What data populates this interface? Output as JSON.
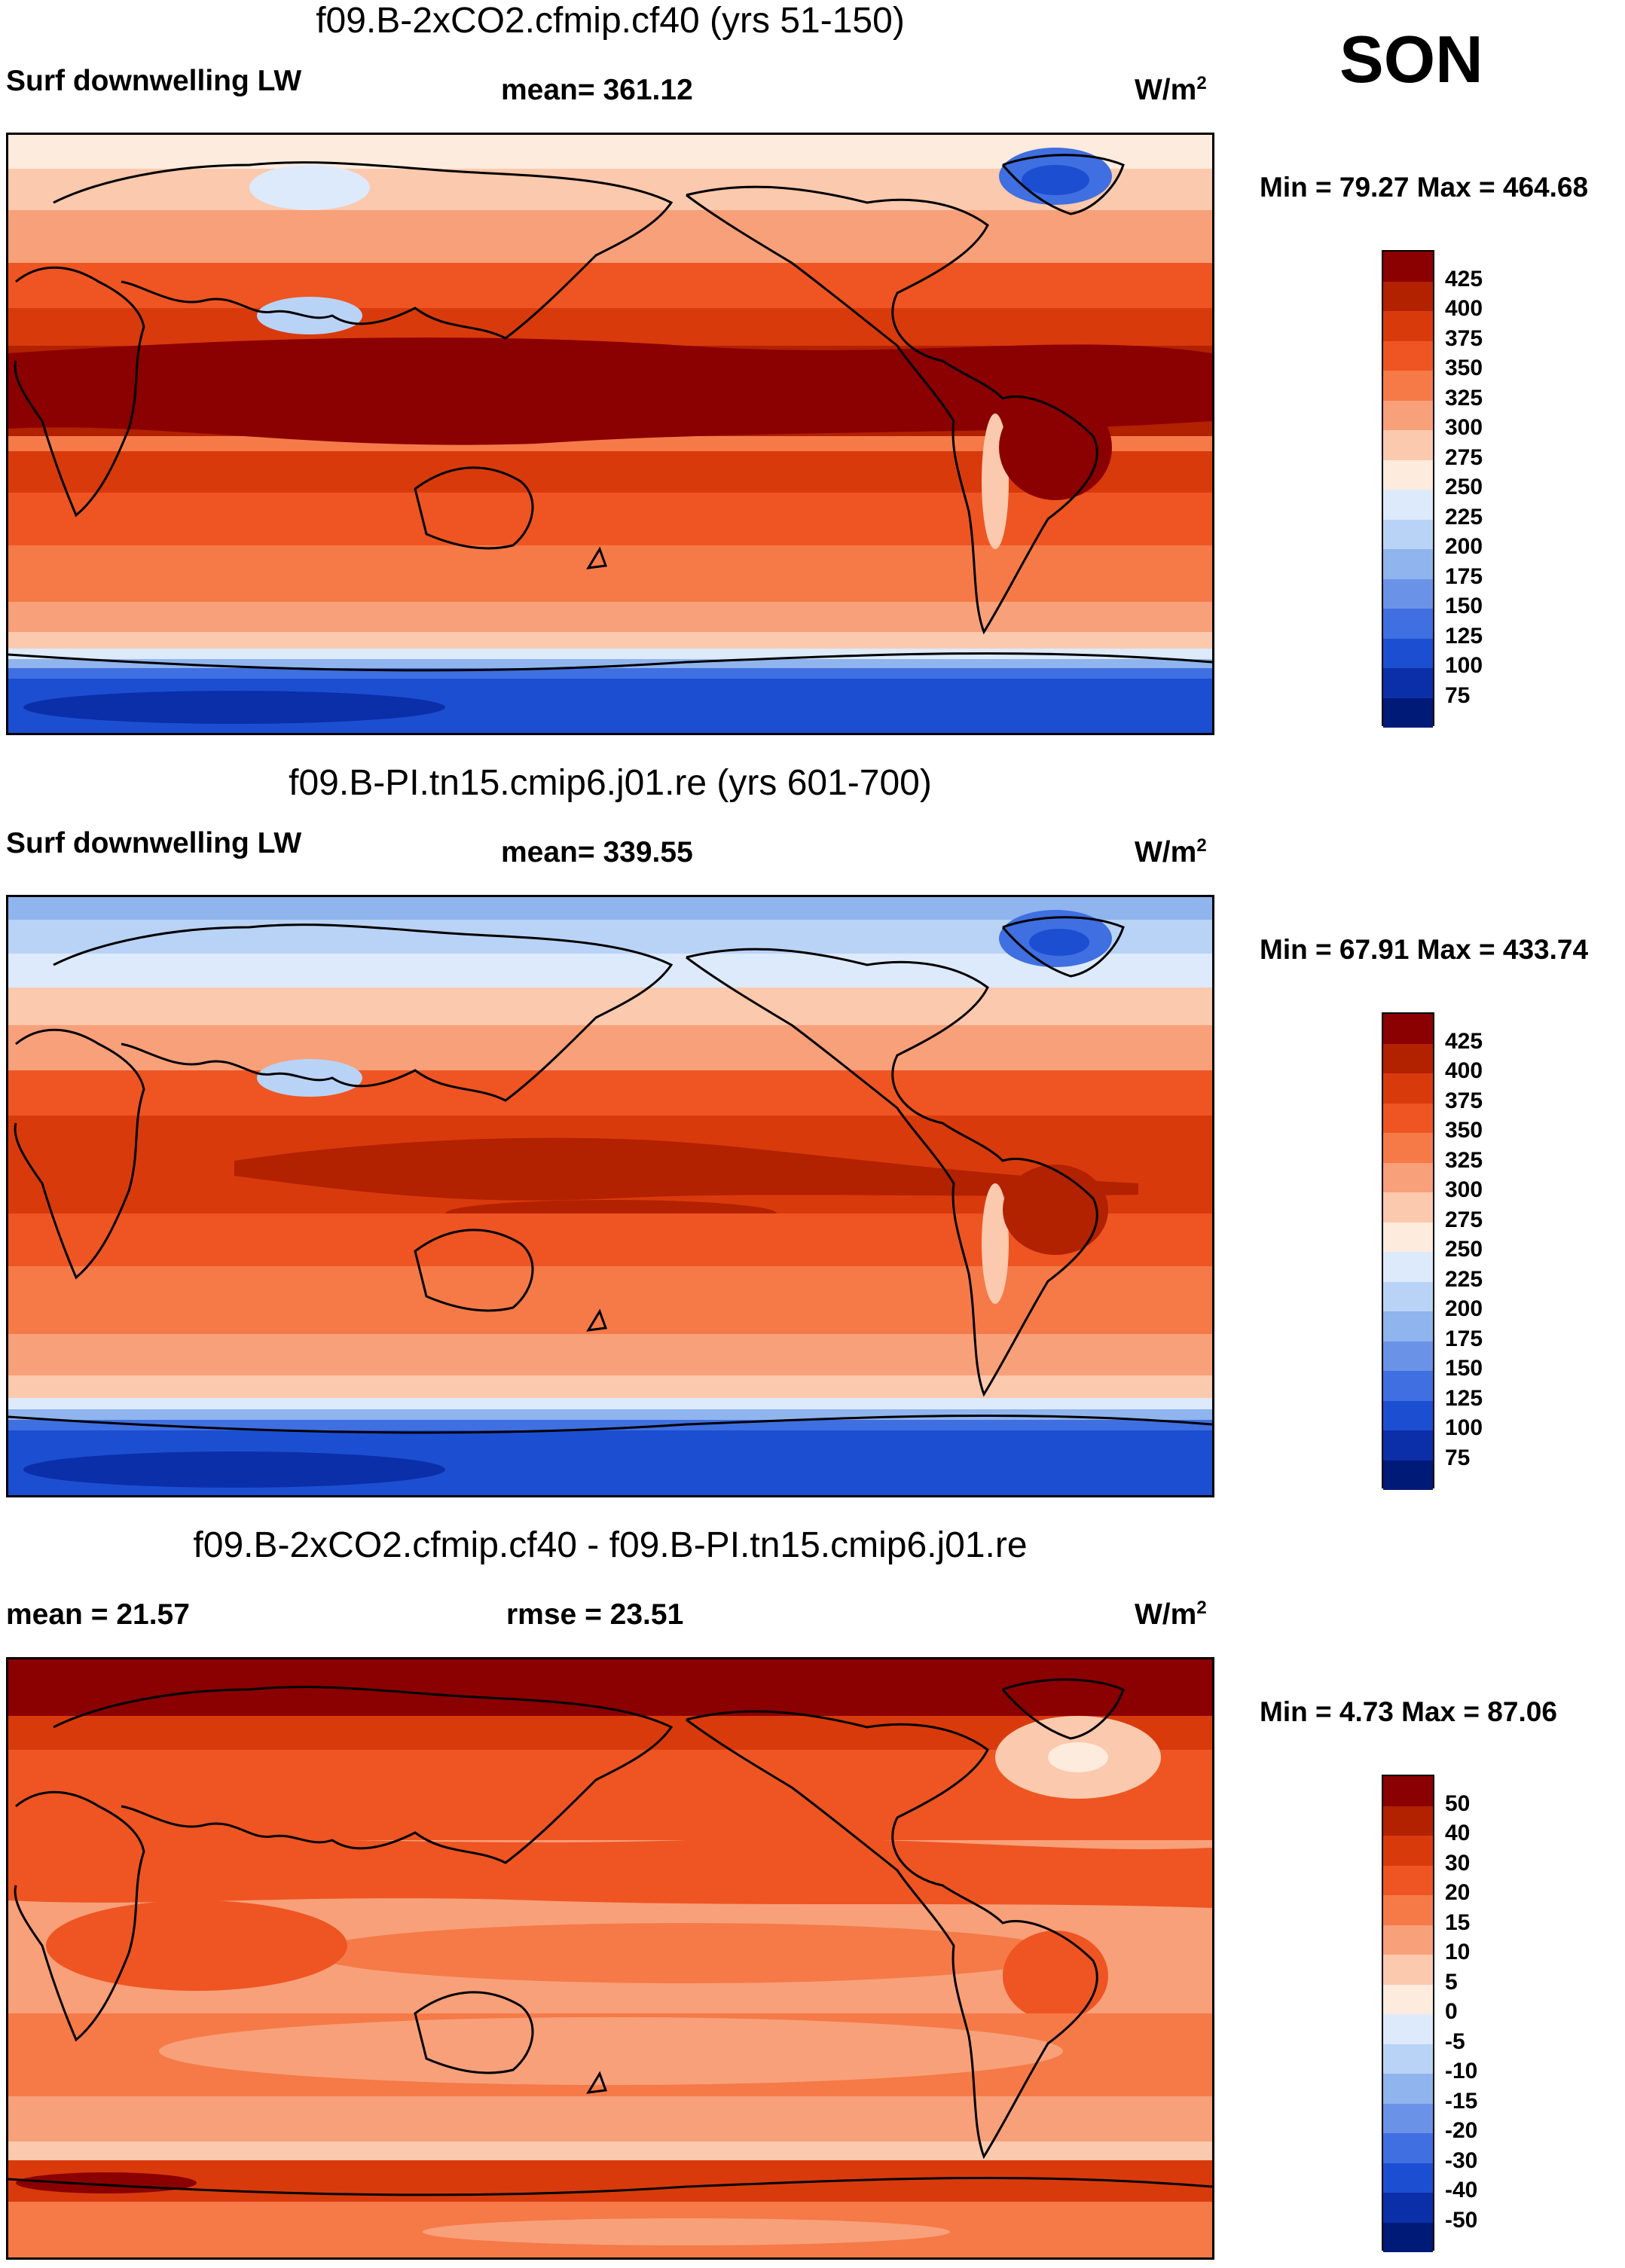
{
  "season": "SON",
  "panels": [
    {
      "title": "f09.B-2xCO2.cfmip.cf40 (yrs 51-150)",
      "left_label": "Surf downwelling LW",
      "mid_label": "mean= 361.12",
      "units": "W/m",
      "units_sup": "2",
      "minmax": "Min =  79.27 Max = 464.68"
    },
    {
      "title": "f09.B-PI.tn15.cmip6.j01.re (yrs 601-700)",
      "left_label": "Surf downwelling LW",
      "mid_label": "mean= 339.55",
      "units": "W/m",
      "units_sup": "2",
      "minmax": "Min =  67.91 Max = 433.74"
    },
    {
      "title": "f09.B-2xCO2.cfmip.cf40 - f09.B-PI.tn15.cmip6.j01.re",
      "left_label": "mean =  21.57",
      "mid_label": "rmse =  23.51",
      "units": "W/m",
      "units_sup": "2",
      "minmax": "Min =   4.73 Max =  87.06"
    }
  ],
  "colorbars": {
    "absolute": {
      "ticks": [
        "425",
        "400",
        "375",
        "350",
        "325",
        "300",
        "275",
        "250",
        "225",
        "200",
        "175",
        "150",
        "125",
        "100",
        "75"
      ],
      "colors": [
        "#8b0000",
        "#b22100",
        "#d93a0c",
        "#ee5522",
        "#f57a48",
        "#f8a07a",
        "#fbc9ad",
        "#fdebdd",
        "#ddeafb",
        "#b9d3f6",
        "#8fb4ee",
        "#6a93e8",
        "#3f6fe0",
        "#1c4ed2",
        "#0b2fa8",
        "#001a78"
      ]
    },
    "difference": {
      "ticks": [
        "50",
        "40",
        "30",
        "20",
        "15",
        "10",
        "5",
        "0",
        "-5",
        "-10",
        "-15",
        "-20",
        "-30",
        "-40",
        "-50"
      ],
      "colors": [
        "#8b0000",
        "#b22100",
        "#d93a0c",
        "#ee5522",
        "#f57a48",
        "#f8a07a",
        "#fbc9ad",
        "#fdebdd",
        "#ddeafb",
        "#b9d3f6",
        "#8fb4ee",
        "#6a93e8",
        "#3f6fe0",
        "#1c4ed2",
        "#0b2fa8",
        "#001a78"
      ]
    }
  },
  "chart_data": [
    {
      "type": "heatmap",
      "title": "f09.B-2xCO2.cfmip.cf40 (yrs 51-150)",
      "variable": "Surf downwelling LW",
      "season": "SON",
      "units": "W/m2",
      "mean": 361.12,
      "min": 79.27,
      "max": 464.68,
      "contour_levels": [
        75,
        100,
        125,
        150,
        175,
        200,
        225,
        250,
        275,
        300,
        325,
        350,
        375,
        400,
        425
      ],
      "lat_profile": [
        {
          "lat": 90,
          "value": 270
        },
        {
          "lat": 70,
          "value": 285
        },
        {
          "lat": 50,
          "value": 320
        },
        {
          "lat": 30,
          "value": 375
        },
        {
          "lat": 10,
          "value": 430
        },
        {
          "lat": -10,
          "value": 415
        },
        {
          "lat": -30,
          "value": 375
        },
        {
          "lat": -50,
          "value": 320
        },
        {
          "lat": -65,
          "value": 230
        },
        {
          "lat": -80,
          "value": 110
        }
      ]
    },
    {
      "type": "heatmap",
      "title": "f09.B-PI.tn15.cmip6.j01.re (yrs 601-700)",
      "variable": "Surf downwelling LW",
      "season": "SON",
      "units": "W/m2",
      "mean": 339.55,
      "min": 67.91,
      "max": 433.74,
      "contour_levels": [
        75,
        100,
        125,
        150,
        175,
        200,
        225,
        250,
        275,
        300,
        325,
        350,
        375,
        400,
        425
      ],
      "lat_profile": [
        {
          "lat": 90,
          "value": 195
        },
        {
          "lat": 70,
          "value": 240
        },
        {
          "lat": 50,
          "value": 300
        },
        {
          "lat": 30,
          "value": 355
        },
        {
          "lat": 10,
          "value": 410
        },
        {
          "lat": -10,
          "value": 395
        },
        {
          "lat": -30,
          "value": 355
        },
        {
          "lat": -50,
          "value": 300
        },
        {
          "lat": -65,
          "value": 210
        },
        {
          "lat": -80,
          "value": 95
        }
      ]
    },
    {
      "type": "heatmap",
      "title": "f09.B-2xCO2.cfmip.cf40 - f09.B-PI.tn15.cmip6.j01.re",
      "season": "SON",
      "units": "W/m2",
      "mean": 21.57,
      "rmse": 23.51,
      "min": 4.73,
      "max": 87.06,
      "contour_levels": [
        -50,
        -40,
        -30,
        -20,
        -15,
        -10,
        -5,
        0,
        5,
        10,
        15,
        20,
        30,
        40,
        50
      ],
      "lat_profile": [
        {
          "lat": 90,
          "value": 60
        },
        {
          "lat": 75,
          "value": 35
        },
        {
          "lat": 55,
          "value": 22
        },
        {
          "lat": 30,
          "value": 20
        },
        {
          "lat": 10,
          "value": 20
        },
        {
          "lat": -10,
          "value": 20
        },
        {
          "lat": -30,
          "value": 15
        },
        {
          "lat": -50,
          "value": 15
        },
        {
          "lat": -62,
          "value": 30
        },
        {
          "lat": -80,
          "value": 15
        }
      ]
    }
  ]
}
